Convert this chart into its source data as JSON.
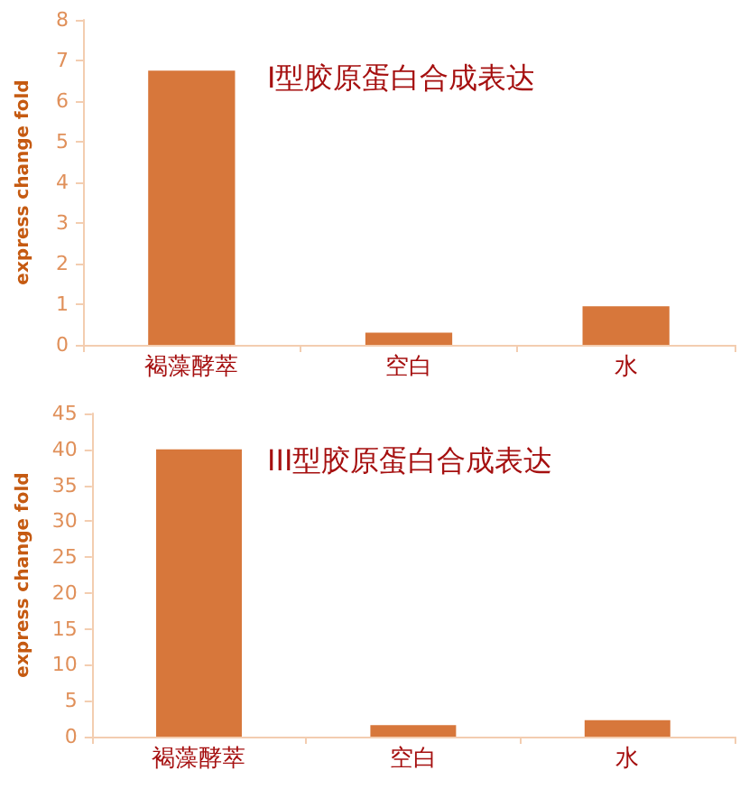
{
  "chart_data": [
    {
      "type": "bar",
      "title": "I型胶原蛋白合成表达",
      "ylabel": "express change fold",
      "categories": [
        "褐藻酵萃",
        "空白",
        "水"
      ],
      "values": [
        6.75,
        0.3,
        0.95
      ],
      "color": "#d7773b",
      "ylim": [
        0,
        8
      ],
      "yticks": [
        0,
        1,
        2,
        3,
        4,
        5,
        6,
        7,
        8
      ]
    },
    {
      "type": "bar",
      "title": "III型胶原蛋白合成表达",
      "ylabel": "express change fold",
      "categories": [
        "褐藻酵萃",
        "空白",
        "水"
      ],
      "values": [
        40,
        1.6,
        2.3
      ],
      "color": "#d7773b",
      "ylim": [
        0,
        45
      ],
      "yticks": [
        0,
        5,
        10,
        15,
        20,
        25,
        30,
        35,
        40,
        45
      ]
    }
  ]
}
